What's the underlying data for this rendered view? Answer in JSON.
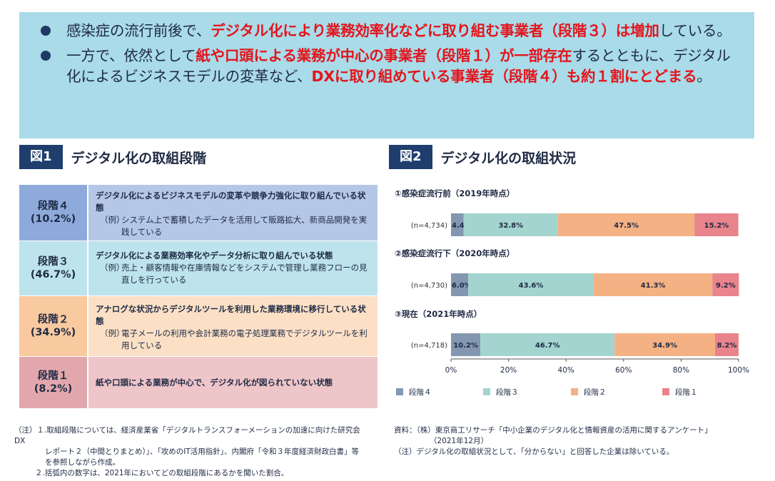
{
  "summary": {
    "bullet1": {
      "a": "感染症の流行前後で、",
      "b": "デジタル化により業務効率化などに取り組む事業者（段階３）は増加",
      "c": "している。"
    },
    "bullet2": {
      "a": "一方で、依然として",
      "b": "紙や口頭による業務が中心の事業者（段階１）が一部存在",
      "c": "するとともに、デジタル化によるビジネスモデルの変革など、",
      "d": "DXに取り組めている事業者（段階４）も約１割にとどまる",
      "e": "。"
    }
  },
  "fig1": {
    "tag": "図1",
    "title": "デジタル化の取組段階",
    "stages": [
      {
        "label": "段階４",
        "pct": "(10.2%)",
        "desc_title": "デジタル化によるビジネスモデルの変革や競争力強化に取り組んでいる状態",
        "example_label": "（例）",
        "example": "システム上で蓄積したデータを活用して販路拡大、新商品開発を実践している"
      },
      {
        "label": "段階３",
        "pct": "(46.7%)",
        "desc_title": "デジタル化による業務効率化やデータ分析に取り組んでいる状態",
        "example_label": "（例）",
        "example": "売上・顧客情報や在庫情報などをシステムで管理し業務フローの見直しを行っている"
      },
      {
        "label": "段階２",
        "pct": "(34.9%)",
        "desc_title": "アナログな状況からデジタルツールを利用した業務環境に移行している状態",
        "example_label": "（例）",
        "example": "電子メールの利用や会計業務の電子処理業務でデジタルツールを利用している"
      },
      {
        "label": "段階１",
        "pct": "(8.2%)",
        "desc_title": "紙や口頭による業務が中心で、デジタル化が図られていない状態"
      }
    ]
  },
  "fig2": {
    "tag": "図2",
    "title": "デジタル化の取組状況"
  },
  "chart_data": {
    "type": "bar",
    "orientation": "horizontal",
    "stacked": true,
    "categories": [
      "①感染症流行前（2019年時点）",
      "②感染症流行下（2020年時点）",
      "③現在（2021年時点）"
    ],
    "sample_sizes": [
      "(n=4,734)",
      "(n=4,730)",
      "(n=4,718)"
    ],
    "series": [
      {
        "name": "段階４",
        "values": [
          4.4,
          6.0,
          10.2
        ],
        "labels": [
          "4.4%",
          "6.0%",
          "10.2%"
        ],
        "color": "#8497b0"
      },
      {
        "name": "段階３",
        "values": [
          32.8,
          43.6,
          46.7
        ],
        "labels": [
          "32.8%",
          "43.6%",
          "46.7%"
        ],
        "color": "#a3d4cf"
      },
      {
        "name": "段階２",
        "values": [
          47.5,
          41.3,
          34.9
        ],
        "labels": [
          "47.5%",
          "41.3%",
          "34.9%"
        ],
        "color": "#f4b183"
      },
      {
        "name": "段階１",
        "values": [
          15.2,
          9.2,
          8.2
        ],
        "labels": [
          "15.2%",
          "9.2%",
          "8.2%"
        ],
        "color": "#e9838c"
      }
    ],
    "xlim": [
      0,
      100
    ],
    "xticks": [
      "0%",
      "20%",
      "40%",
      "60%",
      "80%",
      "100%"
    ],
    "grid": false,
    "legend_position": "bottom"
  },
  "notes": {
    "left": [
      "（注）１.取組段階については、経済産業省「デジタルトランスフォーメーションの加速に向けた研究会DX",
      "レポート２（中間とりまとめ）」、「攻めのIT活用指針」、内閣府「令和３年度経済財政白書」等",
      "を参照しながら作成。",
      "２.括弧内の数字は、2021年においてどの取組段階にあるかを聞いた割合。"
    ],
    "right": [
      "資料：（株）東京商工リサーチ「中小企業のデジタル化と情報資産の活用に関するアンケート」",
      "（2021年12月）",
      "（注）デジタル化の取組状況として、「分からない」と回答した企業は除いている。"
    ]
  },
  "colors": {
    "summary_bg": "#a9dbe9",
    "highlight_red": "#e3141b",
    "fig_tag_bg": "#1f3e6e",
    "stage4": [
      "#8eaadb",
      "#b4c7e7"
    ],
    "stage3": [
      "#bde3ec",
      "#bde3ec"
    ],
    "stage2": [
      "#f9c9a0",
      "#fbe0c6"
    ],
    "stage1": [
      "#e2a7ad",
      "#eec5c8"
    ]
  }
}
